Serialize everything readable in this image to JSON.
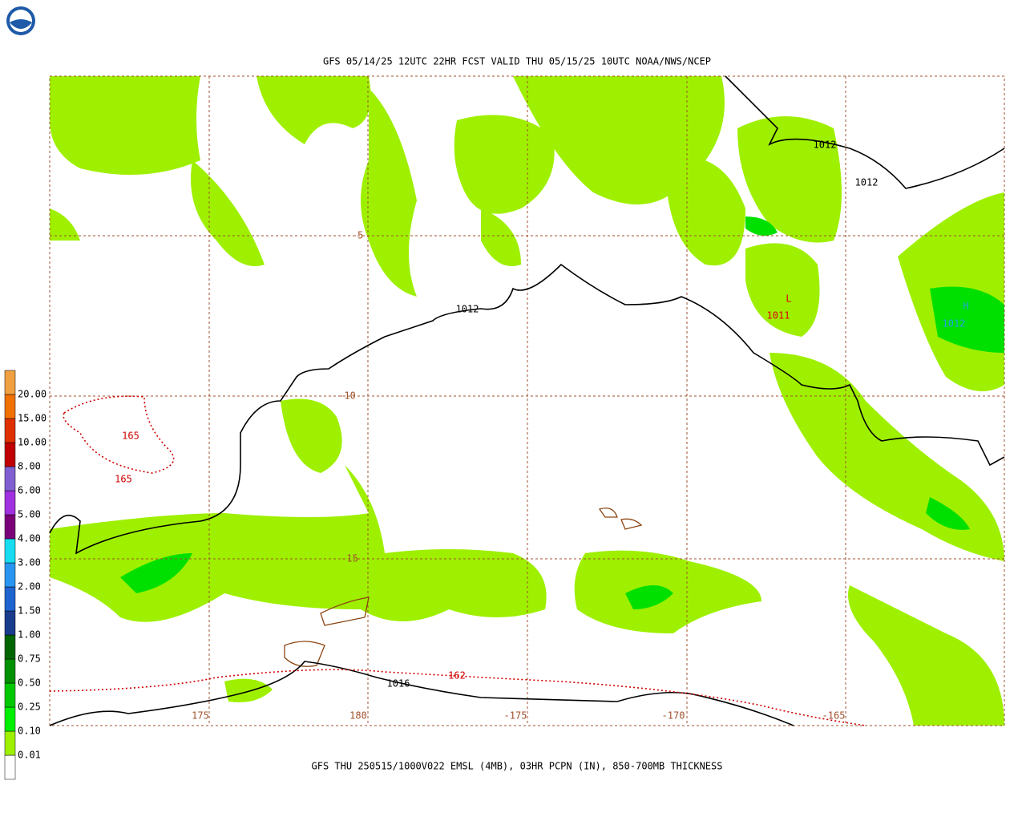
{
  "header": {
    "title": "GFS 05/14/25 12UTC 22HR FCST VALID THU 05/15/25 10UTC NOAA/NWS/NCEP"
  },
  "footer": {
    "caption": "GFS THU 250515/1000V022 EMSL (4MB), 03HR PCPN (IN), 850-700MB THICKNESS"
  },
  "legend": {
    "labels": [
      "0.01",
      "0.10",
      "0.25",
      "0.50",
      "0.75",
      "1.00",
      "1.50",
      "2.00",
      "3.00",
      "4.00",
      "5.00",
      "6.00",
      "8.00",
      "10.00",
      "15.00",
      "20.00"
    ]
  },
  "grid": {
    "lon_labels": [
      "175",
      "180",
      "-175",
      "-170",
      "-165"
    ],
    "lat_labels": [
      "-5",
      "-10",
      "-15"
    ]
  },
  "isobar_labels": [
    "1012",
    "1012",
    "1012",
    "1016"
  ],
  "thickness_labels": [
    "165",
    "165",
    "162"
  ],
  "centers": [
    {
      "symbol": "L",
      "value": "1011"
    },
    {
      "symbol": "H",
      "value": "1012"
    }
  ]
}
